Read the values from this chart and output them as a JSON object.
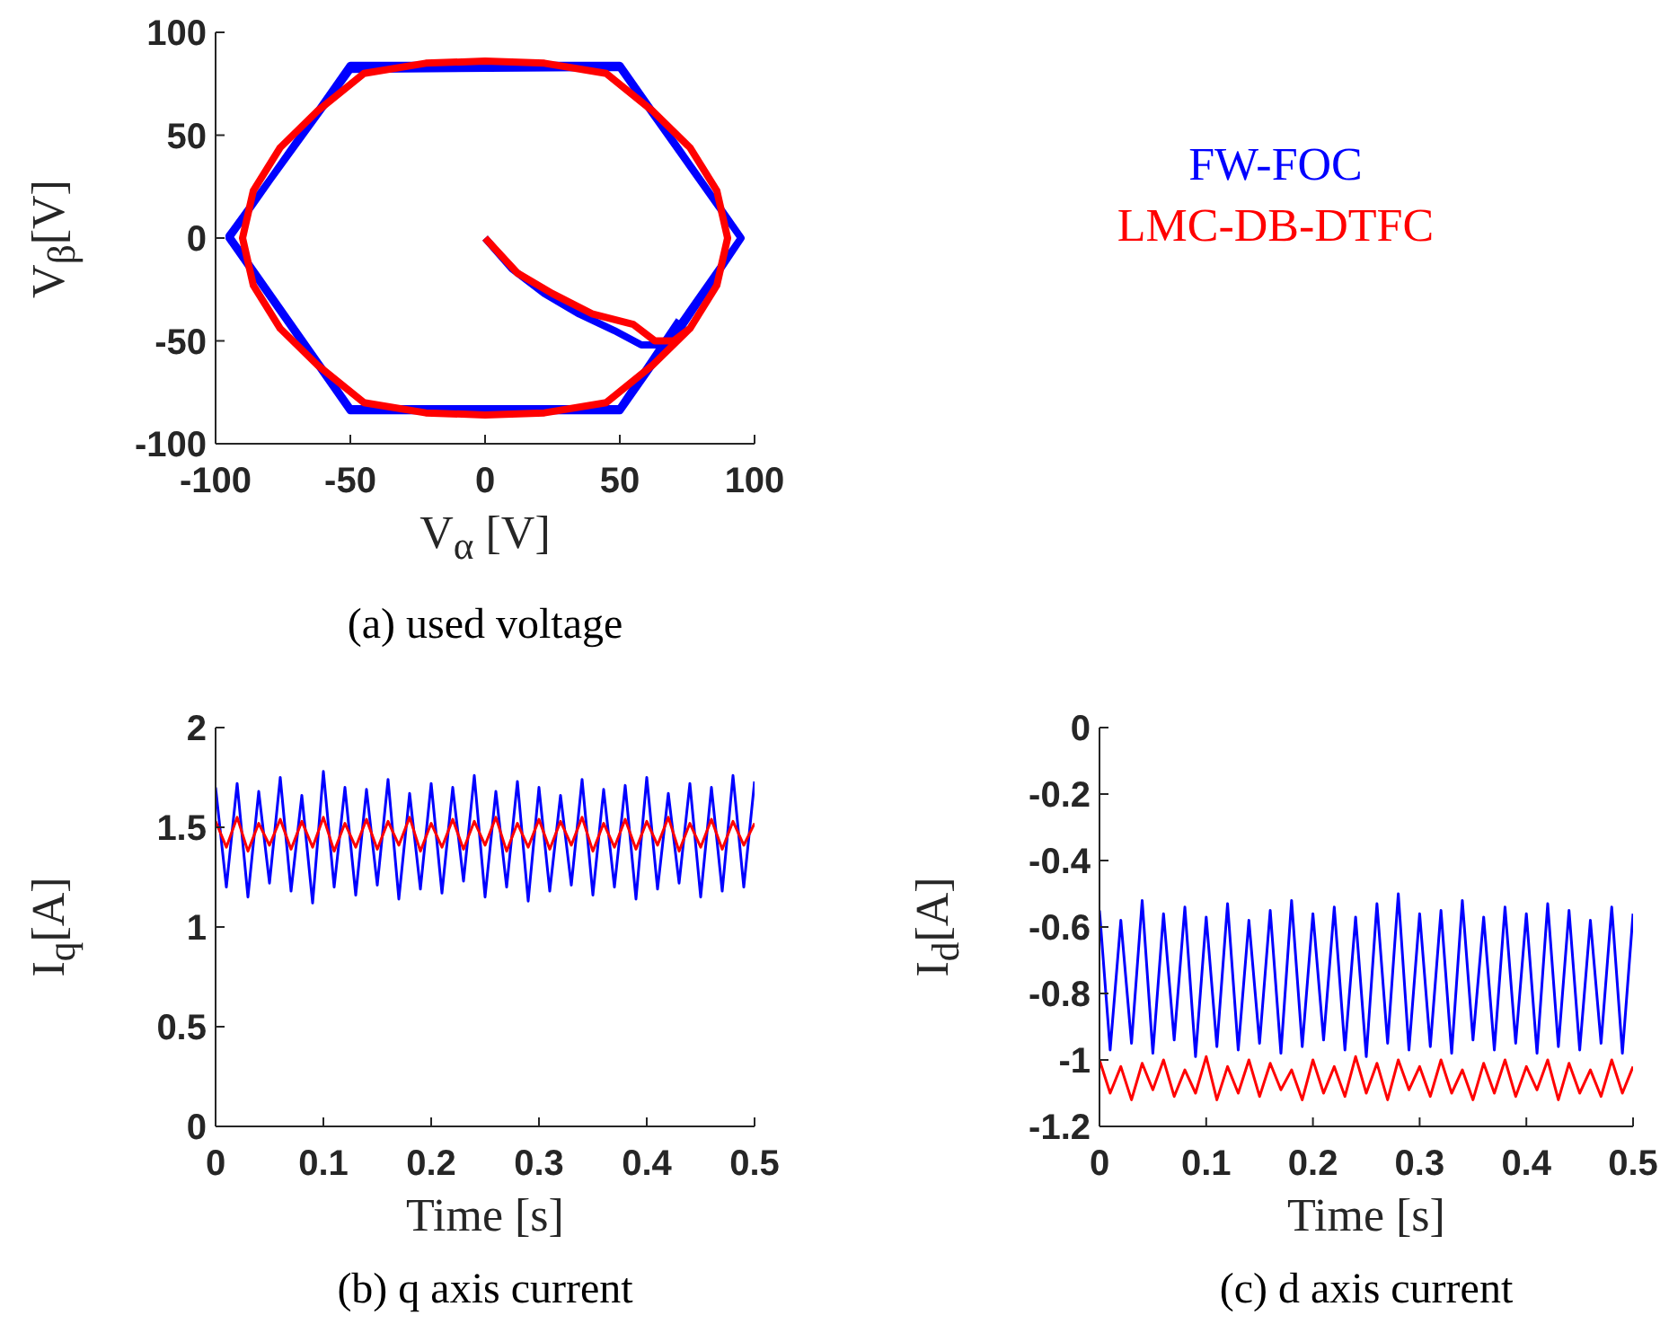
{
  "chart_data": [
    {
      "type": "line",
      "xlabel": "V$_{α}$ [V]",
      "ylabel": "V$_{β}$[V]",
      "annotations": [
        "(a) used voltage"
      ],
      "xlim": [
        -100,
        100
      ],
      "xticks": [
        -100,
        -50,
        0,
        50,
        100
      ],
      "ylim": [
        -100,
        100
      ],
      "yticks": [
        -100,
        -50,
        0,
        50,
        100
      ],
      "legend": "right",
      "marker": "none",
      "series": [
        {
          "name": "FW-FOC",
          "color": "#0000ff",
          "x": [
            0,
            10,
            22,
            35,
            48,
            58,
            65,
            72,
            95,
            50,
            -50,
            -95,
            -50,
            50,
            95,
            50,
            -50,
            -95,
            -50,
            50,
            72
          ],
          "values": [
            0,
            -15,
            -27,
            -37,
            -45,
            -52,
            -52,
            -45,
            0,
            84,
            84,
            0,
            -84,
            -84,
            0,
            83,
            82,
            1,
            -83,
            -83,
            -40
          ]
        },
        {
          "name": "LMC-DB-DTFC",
          "color": "#ff0000",
          "x": [
            0,
            12,
            25,
            40,
            55,
            63,
            70,
            76,
            86,
            90,
            86,
            76,
            62,
            45,
            22,
            0,
            -22,
            -45,
            -62,
            -76,
            -86,
            -90,
            -86,
            -76,
            -62,
            -45,
            -22,
            0,
            22,
            45,
            62,
            76
          ],
          "values": [
            0,
            -17,
            -27,
            -37,
            -42,
            -50,
            -50,
            -44,
            -23,
            0,
            23,
            44,
            62,
            80,
            85,
            86,
            85,
            80,
            62,
            44,
            23,
            0,
            -23,
            -44,
            -62,
            -80,
            -85,
            -86,
            -85,
            -80,
            -62,
            -44
          ]
        }
      ]
    },
    {
      "type": "line",
      "xlabel": "Time [s]",
      "ylabel": "I$_{q}$[A]",
      "annotations": [
        "(b) q axis current"
      ],
      "xlim": [
        0,
        0.5
      ],
      "xticks": [
        0,
        0.1,
        0.2,
        0.3,
        0.4,
        0.5
      ],
      "ylim": [
        0,
        2
      ],
      "yticks": [
        0,
        0.5,
        1,
        1.5,
        2
      ],
      "marker": "none",
      "x": [
        0,
        0.01,
        0.02,
        0.03,
        0.04,
        0.05,
        0.06,
        0.07,
        0.08,
        0.09,
        0.1,
        0.11,
        0.12,
        0.13,
        0.14,
        0.15,
        0.16,
        0.17,
        0.18,
        0.19,
        0.2,
        0.21,
        0.22,
        0.23,
        0.24,
        0.25,
        0.26,
        0.27,
        0.28,
        0.29,
        0.3,
        0.31,
        0.32,
        0.33,
        0.34,
        0.35,
        0.36,
        0.37,
        0.38,
        0.39,
        0.4,
        0.41,
        0.42,
        0.43,
        0.44,
        0.45,
        0.46,
        0.47,
        0.48,
        0.49,
        0.5
      ],
      "series": [
        {
          "color": "#0000ff",
          "values": [
            1.7,
            1.2,
            1.72,
            1.15,
            1.68,
            1.22,
            1.75,
            1.18,
            1.66,
            1.12,
            1.78,
            1.2,
            1.7,
            1.16,
            1.69,
            1.21,
            1.74,
            1.14,
            1.67,
            1.19,
            1.72,
            1.17,
            1.7,
            1.23,
            1.76,
            1.15,
            1.68,
            1.2,
            1.73,
            1.13,
            1.7,
            1.18,
            1.66,
            1.21,
            1.74,
            1.16,
            1.69,
            1.2,
            1.71,
            1.14,
            1.75,
            1.19,
            1.67,
            1.22,
            1.72,
            1.15,
            1.7,
            1.18,
            1.76,
            1.2,
            1.73
          ]
        },
        {
          "color": "#ff0000",
          "values": [
            1.53,
            1.4,
            1.55,
            1.38,
            1.52,
            1.41,
            1.54,
            1.39,
            1.53,
            1.4,
            1.55,
            1.38,
            1.52,
            1.4,
            1.54,
            1.39,
            1.53,
            1.41,
            1.55,
            1.38,
            1.52,
            1.4,
            1.54,
            1.39,
            1.53,
            1.41,
            1.55,
            1.38,
            1.52,
            1.4,
            1.54,
            1.39,
            1.53,
            1.41,
            1.55,
            1.38,
            1.52,
            1.4,
            1.54,
            1.39,
            1.53,
            1.41,
            1.55,
            1.38,
            1.52,
            1.4,
            1.54,
            1.39,
            1.53,
            1.41,
            1.52
          ]
        }
      ]
    },
    {
      "type": "line",
      "xlabel": "Time [s]",
      "ylabel": "I$_{d}$[A]",
      "annotations": [
        "(c) d axis current"
      ],
      "xlim": [
        0,
        0.5
      ],
      "xticks": [
        0,
        0.1,
        0.2,
        0.3,
        0.4,
        0.5
      ],
      "ylim": [
        -1.2,
        0
      ],
      "yticks": [
        -1.2,
        -1,
        -0.8,
        -0.6,
        -0.4,
        -0.2,
        0
      ],
      "marker": "none",
      "x": [
        0,
        0.01,
        0.02,
        0.03,
        0.04,
        0.05,
        0.06,
        0.07,
        0.08,
        0.09,
        0.1,
        0.11,
        0.12,
        0.13,
        0.14,
        0.15,
        0.16,
        0.17,
        0.18,
        0.19,
        0.2,
        0.21,
        0.22,
        0.23,
        0.24,
        0.25,
        0.26,
        0.27,
        0.28,
        0.29,
        0.3,
        0.31,
        0.32,
        0.33,
        0.34,
        0.35,
        0.36,
        0.37,
        0.38,
        0.39,
        0.4,
        0.41,
        0.42,
        0.43,
        0.44,
        0.45,
        0.46,
        0.47,
        0.48,
        0.49,
        0.5
      ],
      "series": [
        {
          "color": "#0000ff",
          "values": [
            -0.55,
            -0.97,
            -0.58,
            -0.95,
            -0.52,
            -0.98,
            -0.56,
            -0.94,
            -0.54,
            -0.99,
            -0.57,
            -0.96,
            -0.53,
            -0.97,
            -0.58,
            -0.95,
            -0.55,
            -0.98,
            -0.52,
            -0.96,
            -0.56,
            -0.94,
            -0.54,
            -0.97,
            -0.57,
            -0.99,
            -0.53,
            -0.95,
            -0.5,
            -0.97,
            -0.56,
            -0.96,
            -0.55,
            -0.98,
            -0.52,
            -0.94,
            -0.57,
            -0.97,
            -0.54,
            -0.95,
            -0.56,
            -0.98,
            -0.53,
            -0.96,
            -0.55,
            -0.97,
            -0.58,
            -0.95,
            -0.54,
            -0.98,
            -0.56
          ]
        },
        {
          "color": "#ff0000",
          "values": [
            -1.0,
            -1.1,
            -1.02,
            -1.12,
            -1.01,
            -1.09,
            -1.0,
            -1.11,
            -1.03,
            -1.1,
            -0.99,
            -1.12,
            -1.02,
            -1.1,
            -1.0,
            -1.11,
            -1.01,
            -1.09,
            -1.03,
            -1.12,
            -1.0,
            -1.1,
            -1.02,
            -1.11,
            -0.99,
            -1.1,
            -1.01,
            -1.12,
            -1.0,
            -1.09,
            -1.02,
            -1.11,
            -1.0,
            -1.1,
            -1.03,
            -1.12,
            -1.01,
            -1.1,
            -1.0,
            -1.11,
            -1.02,
            -1.09,
            -1.0,
            -1.12,
            -1.01,
            -1.1,
            -1.03,
            -1.11,
            -1.0,
            -1.1,
            -1.02
          ]
        }
      ]
    }
  ]
}
